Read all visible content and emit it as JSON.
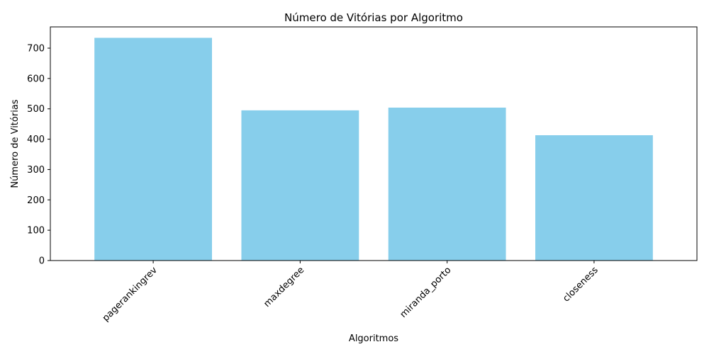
{
  "chart_data": {
    "type": "bar",
    "title": "Número de Vitórias por Algoritmo",
    "xlabel": "Algoritmos",
    "ylabel": "Número de Vitórias",
    "categories": [
      "pagerankingrev",
      "maxdegree",
      "miranda_porto",
      "closeness"
    ],
    "values": [
      734,
      495,
      504,
      413
    ],
    "ylim": [
      0,
      770
    ],
    "yticks": [
      0,
      100,
      200,
      300,
      400,
      500,
      600,
      700
    ],
    "bar_color": "#87ceeb",
    "grid": false,
    "legend": false
  }
}
